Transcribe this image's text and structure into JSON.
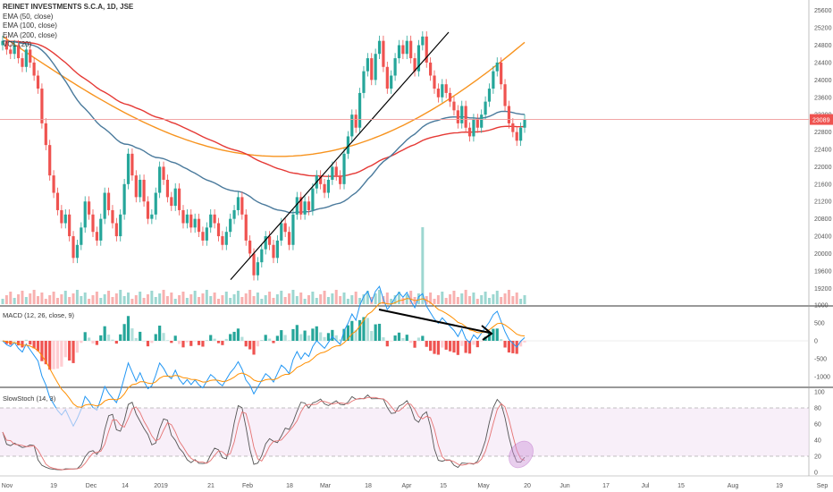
{
  "chart_data": [
    {
      "type": "candlestick",
      "title": "REINET INVESTMENTS S.C.A, 1D, JSE",
      "legend": [
        "EMA (50, close)",
        "EMA (100, close)",
        "EMA (200, close)",
        "VOL (20)"
      ],
      "last_price_label": "23089",
      "y_ticks": [
        19200,
        19600,
        20000,
        20400,
        20800,
        21200,
        21600,
        22000,
        22400,
        22800,
        23200,
        23600,
        24000,
        24400,
        24800,
        25200,
        25600
      ],
      "x_tick_labels": [
        "Nov",
        "19",
        "Dec",
        "14",
        "2019",
        "21",
        "Feb",
        "18",
        "Mar",
        "18",
        "Apr",
        "15",
        "May",
        "20",
        "Jun",
        "17",
        "Jul",
        "15",
        "Aug",
        "19",
        "Sep"
      ],
      "closes": [
        24900,
        24700,
        24600,
        24800,
        24500,
        24300,
        24700,
        24400,
        24100,
        23800,
        23000,
        22500,
        21800,
        21400,
        21000,
        20700,
        20900,
        20400,
        19900,
        20200,
        20600,
        21200,
        20900,
        20500,
        20300,
        20800,
        21400,
        21000,
        20700,
        20400,
        20900,
        21600,
        22300,
        21800,
        21300,
        21700,
        21200,
        20800,
        20900,
        21400,
        22000,
        21700,
        21300,
        21100,
        21500,
        21000,
        20700,
        20900,
        20600,
        20800,
        20500,
        20300,
        20600,
        20900,
        20700,
        20400,
        20200,
        20500,
        20800,
        21000,
        21300,
        20900,
        20300,
        20000,
        19500,
        19800,
        20100,
        20400,
        20200,
        19900,
        20300,
        20700,
        20500,
        20200,
        20900,
        21300,
        20900,
        21200,
        21000,
        21500,
        21800,
        21600,
        21400,
        21700,
        22000,
        21800,
        21600,
        22300,
        22700,
        23200,
        22900,
        23700,
        24200,
        24500,
        24000,
        24600,
        24900,
        24300,
        23800,
        24100,
        24500,
        24800,
        24600,
        24900,
        24500,
        24200,
        24800,
        25000,
        24400,
        24100,
        23800,
        23600,
        23900,
        23700,
        23500,
        23300,
        23000,
        23400,
        22900,
        22700,
        23100,
        22900,
        23200,
        23500,
        23800,
        24200,
        24400,
        23900,
        23400,
        23000,
        22800,
        22600,
        22900,
        23089
      ],
      "ema50_endpoints": [
        25100,
        23200
      ],
      "ema100_endpoints": [
        25000,
        23050
      ],
      "ema200_endpoints": [
        24500,
        23100
      ],
      "trendline": {
        "from_price": 19400,
        "to_price": 25100
      }
    },
    {
      "type": "macd",
      "title": "MACD (12, 26, close, 9)",
      "y_ticks": [
        1000,
        500,
        0,
        -500,
        -1000
      ]
    },
    {
      "type": "stochastic",
      "title": "SlowStoch (14, 3)",
      "y_ticks": [
        100,
        80,
        60,
        40,
        20,
        0
      ],
      "bands": [
        80,
        20
      ]
    }
  ],
  "colors": {
    "up": "#26a69a",
    "down": "#ef5350",
    "ema50": "#4a7a9c",
    "ema100": "#e53935",
    "ema200": "#f7931e",
    "macd": "#2196f3",
    "signal": "#ff8f00",
    "stoch_k": "#555555",
    "stoch_d": "#e57373",
    "band_fill": "#f3e5f5"
  }
}
